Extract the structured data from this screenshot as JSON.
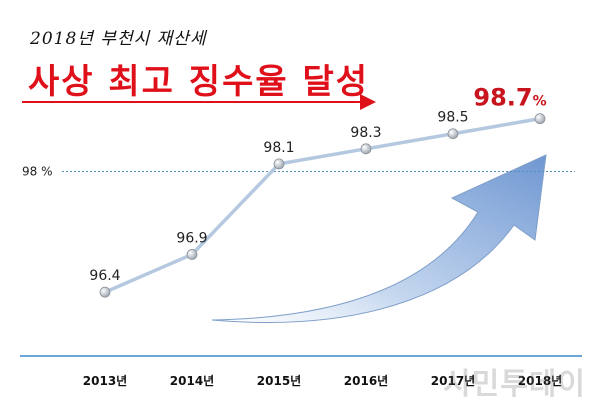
{
  "header": {
    "subtitle": "2018년 부천시 재산세",
    "title": "사상 최고 징수율 달성"
  },
  "watermark": "시민투데이",
  "colors": {
    "title": "#e0101a",
    "line": "#b4c8e0",
    "marker": "#c8ccd2",
    "reference_line": "#4f90b8",
    "baseline": "#3a86c8",
    "highlight_label": "#c8141e",
    "arrow": "#8fb0dc"
  },
  "chart_data": {
    "type": "line",
    "categories": [
      "2013년",
      "2014년",
      "2015년",
      "2016년",
      "2017년",
      "2018년"
    ],
    "values": [
      96.4,
      96.9,
      98.1,
      98.3,
      98.5,
      98.7
    ],
    "data_labels": [
      "96.4",
      "96.9",
      "98.1",
      "98.3",
      "98.5",
      "98.7"
    ],
    "highlight_suffix": "%",
    "reference_line": {
      "value": 98,
      "label": "98 %"
    },
    "ylim": [
      95.7,
      99.0
    ],
    "grid": false,
    "legend": "none",
    "decoration": "large blue upward curved arrow"
  }
}
